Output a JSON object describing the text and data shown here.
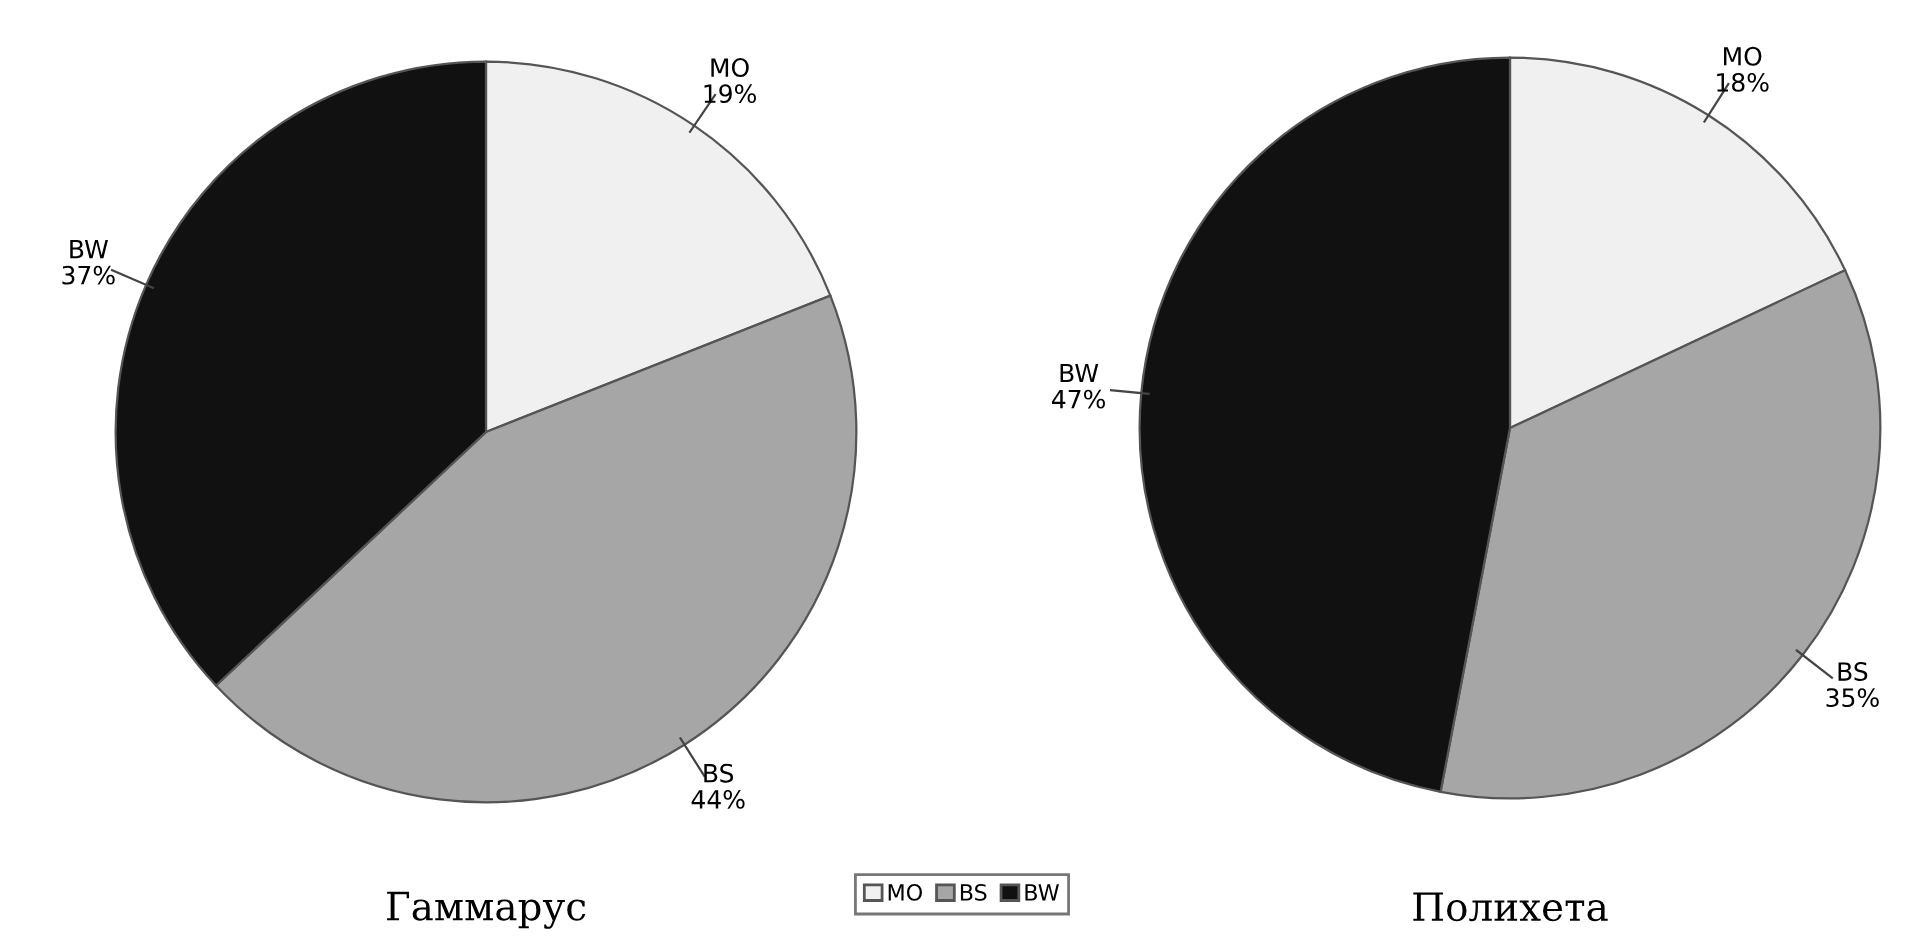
{
  "chart_data": [
    {
      "type": "pie",
      "title": "Гаммарус",
      "categories": [
        "MO",
        "BS",
        "BW"
      ],
      "values": [
        19,
        44,
        37
      ],
      "value_labels": [
        "19%",
        "44%",
        "37%"
      ],
      "colors": [
        "#f0f0f0",
        "#a6a6a6",
        "#111111"
      ],
      "legend": "bottom"
    },
    {
      "type": "pie",
      "title": "Полихета",
      "categories": [
        "MO",
        "BS",
        "BW"
      ],
      "values": [
        18,
        35,
        47
      ],
      "value_labels": [
        "18%",
        "35%",
        "47%"
      ],
      "colors": [
        "#f0f0f0",
        "#a6a6a6",
        "#111111"
      ]
    }
  ]
}
